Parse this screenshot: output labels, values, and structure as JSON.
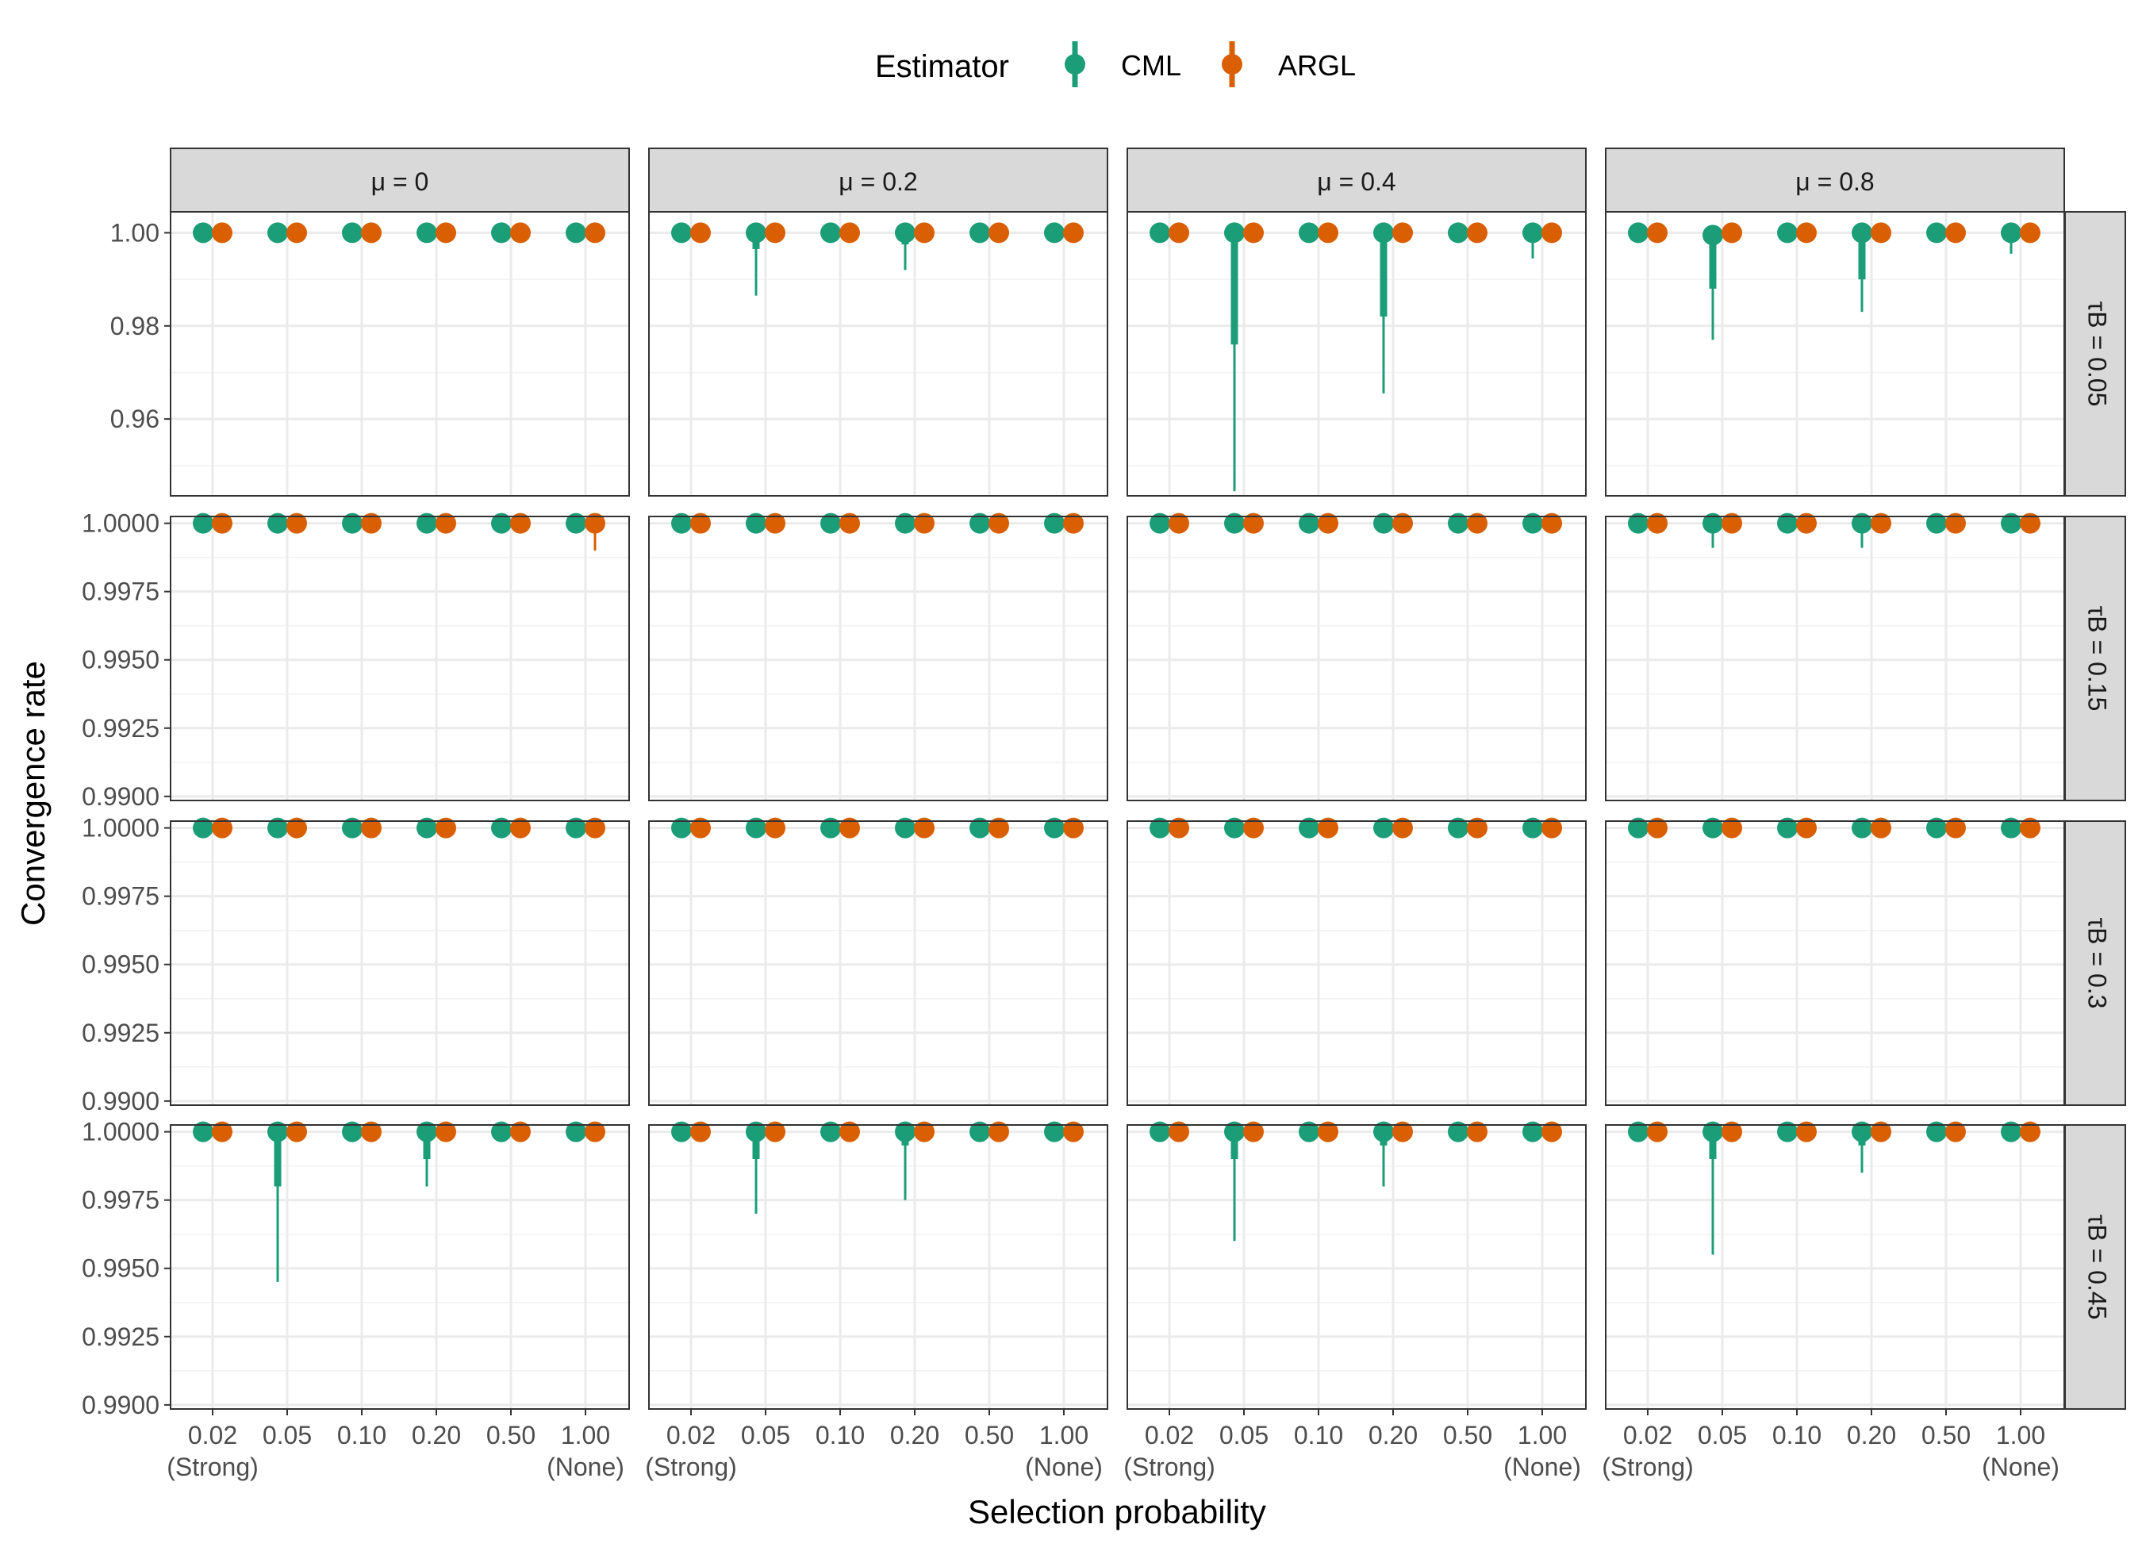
{
  "legend": {
    "title": "Estimator",
    "placement": "top",
    "items": [
      {
        "name": "CML",
        "color": "#1b9e77"
      },
      {
        "name": "ARGL",
        "color": "#d95f02"
      }
    ]
  },
  "chart_data": {
    "type": "scatter",
    "subtype": "faceted point-range",
    "xlabel": "Selection probability",
    "ylabel": "Convergence rate",
    "grid": true,
    "x": [
      "0.02",
      "0.05",
      "0.10",
      "0.20",
      "0.50",
      "1.00"
    ],
    "x_sublabels": [
      "(Strong)",
      "",
      "",
      "",
      "",
      "(None)"
    ],
    "facet_cols": [
      "μ = 0",
      "μ = 0.2",
      "μ = 0.4",
      "μ = 0.8"
    ],
    "facet_rows": [
      "τB = 0.05",
      "τB = 0.15",
      "τB = 0.3",
      "τB = 0.45"
    ],
    "rows": [
      {
        "strip": "τB = 0.05",
        "ylim": [
          0.9435,
          1.0045
        ],
        "yticks": [
          0.96,
          0.98,
          1.0
        ],
        "ytick_labels": [
          "0.96",
          "0.98",
          "1.00"
        ],
        "panels": [
          {
            "CML": {
              "y": [
                1,
                1,
                1,
                1,
                1,
                1
              ],
              "thin_low": [
                1,
                1,
                1,
                1,
                1,
                1
              ],
              "thick_low": [
                1,
                1,
                1,
                1,
                1,
                1
              ]
            },
            "ARGL": {
              "y": [
                1,
                1,
                1,
                1,
                1,
                1
              ],
              "thin_low": [
                1,
                1,
                1,
                1,
                1,
                1
              ],
              "thick_low": [
                1,
                1,
                1,
                1,
                1,
                1
              ]
            }
          },
          {
            "CML": {
              "y": [
                1,
                1,
                1,
                1,
                1,
                1
              ],
              "thin_low": [
                1,
                0.9865,
                1,
                0.992,
                1,
                1
              ],
              "thick_low": [
                1,
                0.9965,
                1,
                0.9975,
                1,
                1
              ]
            },
            "ARGL": {
              "y": [
                1,
                1,
                1,
                1,
                1,
                1
              ],
              "thin_low": [
                1,
                1,
                1,
                1,
                1,
                1
              ],
              "thick_low": [
                1,
                1,
                1,
                1,
                1,
                1
              ]
            }
          },
          {
            "CML": {
              "y": [
                1,
                1,
                1,
                1,
                1,
                1
              ],
              "thin_low": [
                1,
                0.9445,
                1,
                0.9655,
                1,
                0.9945
              ],
              "thick_low": [
                1,
                0.976,
                1,
                0.982,
                1,
                0.9985
              ]
            },
            "ARGL": {
              "y": [
                1,
                1,
                1,
                1,
                1,
                1
              ],
              "thin_low": [
                1,
                1,
                1,
                1,
                1,
                1
              ],
              "thick_low": [
                1,
                1,
                1,
                1,
                1,
                1
              ]
            }
          },
          {
            "CML": {
              "y": [
                1,
                0.9995,
                1,
                1,
                1,
                1
              ],
              "thin_low": [
                1,
                0.977,
                1,
                0.983,
                1,
                0.9955
              ],
              "thick_low": [
                1,
                0.988,
                1,
                0.99,
                1,
                0.9985
              ]
            },
            "ARGL": {
              "y": [
                1,
                1,
                1,
                1,
                1,
                1
              ],
              "thin_low": [
                1,
                1,
                1,
                1,
                1,
                1
              ],
              "thick_low": [
                1,
                1,
                1,
                1,
                1,
                1
              ]
            }
          }
        ]
      },
      {
        "strip": "τB = 0.15",
        "ylim": [
          0.98985,
          1.00025
        ],
        "yticks": [
          0.99,
          0.9925,
          0.995,
          0.9975,
          1.0
        ],
        "ytick_labels": [
          "0.9900",
          "0.9925",
          "0.9950",
          "0.9975",
          "1.0000"
        ],
        "panels": [
          {
            "CML": {
              "y": [
                1,
                1,
                1,
                1,
                1,
                1
              ],
              "thin_low": [
                0.99985,
                0.99985,
                0.99985,
                0.99985,
                0.99985,
                1
              ],
              "thick_low": [
                1,
                1,
                1,
                1,
                1,
                1
              ]
            },
            "ARGL": {
              "y": [
                1,
                1,
                1,
                1,
                1,
                1
              ],
              "thin_low": [
                1,
                1,
                1,
                0.99985,
                0.99985,
                0.999
              ],
              "thick_low": [
                1,
                1,
                1,
                1,
                0.9998,
                0.9997
              ]
            }
          },
          {
            "CML": {
              "y": [
                1,
                1,
                1,
                1,
                1,
                1
              ],
              "thin_low": [
                0.99985,
                0.99985,
                1,
                0.99985,
                1,
                1
              ],
              "thick_low": [
                1,
                1,
                1,
                1,
                1,
                1
              ]
            },
            "ARGL": {
              "y": [
                1,
                1,
                1,
                1,
                1,
                1
              ],
              "thin_low": [
                1,
                1,
                1,
                1,
                1,
                0.99985
              ],
              "thick_low": [
                1,
                1,
                1,
                1,
                1,
                1
              ]
            }
          },
          {
            "CML": {
              "y": [
                1,
                1,
                1,
                1,
                1,
                1
              ],
              "thin_low": [
                0.99985,
                1,
                0.99985,
                0.99985,
                0.99985,
                1
              ],
              "thick_low": [
                1,
                1,
                1,
                1,
                1,
                1
              ]
            },
            "ARGL": {
              "y": [
                1,
                1,
                1,
                1,
                1,
                1
              ],
              "thin_low": [
                1,
                1,
                1,
                1,
                1,
                1
              ],
              "thick_low": [
                1,
                1,
                1,
                1,
                1,
                1
              ]
            }
          },
          {
            "CML": {
              "y": [
                1,
                1,
                1,
                1,
                1,
                1
              ],
              "thin_low": [
                0.99985,
                0.9991,
                0.99985,
                0.9991,
                0.99985,
                1
              ],
              "thick_low": [
                1,
                0.9997,
                1,
                0.9997,
                1,
                1
              ]
            },
            "ARGL": {
              "y": [
                1,
                1,
                1,
                1,
                1,
                1
              ],
              "thin_low": [
                1,
                1,
                1,
                1,
                1,
                1
              ],
              "thick_low": [
                1,
                1,
                1,
                1,
                1,
                1
              ]
            }
          }
        ]
      },
      {
        "strip": "τB = 0.3",
        "ylim": [
          0.98985,
          1.00025
        ],
        "yticks": [
          0.99,
          0.9925,
          0.995,
          0.9975,
          1.0
        ],
        "ytick_labels": [
          "0.9900",
          "0.9925",
          "0.9950",
          "0.9975",
          "1.0000"
        ],
        "panels": [
          {
            "CML": {
              "y": [
                1,
                1,
                1,
                1,
                1,
                1
              ],
              "thin_low": [
                1,
                0.99985,
                0.99985,
                1,
                1,
                1
              ],
              "thick_low": [
                1,
                1,
                1,
                1,
                1,
                1
              ]
            },
            "ARGL": {
              "y": [
                1,
                1,
                1,
                1,
                1,
                1
              ],
              "thin_low": [
                1,
                1,
                1,
                1,
                0.99985,
                1
              ],
              "thick_low": [
                1,
                1,
                1,
                1,
                1,
                1
              ]
            }
          },
          {
            "CML": {
              "y": [
                1,
                1,
                1,
                1,
                1,
                1
              ],
              "thin_low": [
                1,
                1,
                1,
                1,
                1,
                1
              ],
              "thick_low": [
                1,
                1,
                1,
                1,
                1,
                1
              ]
            },
            "ARGL": {
              "y": [
                1,
                1,
                1,
                1,
                1,
                1
              ],
              "thin_low": [
                1,
                1,
                1,
                1,
                1,
                0.99985
              ],
              "thick_low": [
                1,
                1,
                1,
                1,
                1,
                1
              ]
            }
          },
          {
            "CML": {
              "y": [
                1,
                1,
                1,
                1,
                1,
                1
              ],
              "thin_low": [
                0.99985,
                1,
                1,
                1,
                1,
                1
              ],
              "thick_low": [
                1,
                1,
                1,
                1,
                1,
                1
              ]
            },
            "ARGL": {
              "y": [
                1,
                1,
                1,
                1,
                1,
                1
              ],
              "thin_low": [
                1,
                1,
                1,
                1,
                1,
                1
              ],
              "thick_low": [
                1,
                1,
                1,
                1,
                1,
                1
              ]
            }
          },
          {
            "CML": {
              "y": [
                1,
                1,
                1,
                1,
                1,
                1
              ],
              "thin_low": [
                0.99985,
                0.99985,
                1,
                1,
                1,
                1
              ],
              "thick_low": [
                1,
                1,
                1,
                1,
                1,
                1
              ]
            },
            "ARGL": {
              "y": [
                1,
                1,
                1,
                1,
                1,
                1
              ],
              "thin_low": [
                1,
                1,
                1,
                1,
                1,
                1
              ],
              "thick_low": [
                1,
                1,
                1,
                1,
                1,
                1
              ]
            }
          }
        ]
      },
      {
        "strip": "τB = 0.45",
        "ylim": [
          0.98985,
          1.00025
        ],
        "yticks": [
          0.99,
          0.9925,
          0.995,
          0.9975,
          1.0
        ],
        "ytick_labels": [
          "0.9900",
          "0.9925",
          "0.9950",
          "0.9975",
          "1.0000"
        ],
        "panels": [
          {
            "CML": {
              "y": [
                1,
                1,
                1,
                1,
                1,
                1
              ],
              "thin_low": [
                0.99985,
                0.9945,
                0.99985,
                0.998,
                1,
                1
              ],
              "thick_low": [
                1,
                0.998,
                1,
                0.999,
                1,
                1
              ]
            },
            "ARGL": {
              "y": [
                1,
                1,
                1,
                1,
                1,
                1
              ],
              "thin_low": [
                1,
                1,
                1,
                1,
                1,
                1
              ],
              "thick_low": [
                1,
                1,
                1,
                1,
                1,
                1
              ]
            }
          },
          {
            "CML": {
              "y": [
                1,
                1,
                1,
                1,
                1,
                1
              ],
              "thin_low": [
                1,
                0.997,
                1,
                0.9975,
                1,
                1
              ],
              "thick_low": [
                1,
                0.999,
                1,
                0.9995,
                1,
                1
              ]
            },
            "ARGL": {
              "y": [
                1,
                1,
                1,
                1,
                1,
                1
              ],
              "thin_low": [
                1,
                1,
                1,
                1,
                1,
                1
              ],
              "thick_low": [
                1,
                1,
                1,
                1,
                1,
                1
              ]
            }
          },
          {
            "CML": {
              "y": [
                1,
                1,
                1,
                1,
                1,
                1
              ],
              "thin_low": [
                1,
                0.996,
                1,
                0.998,
                1,
                1
              ],
              "thick_low": [
                1,
                0.999,
                1,
                0.9995,
                1,
                1
              ]
            },
            "ARGL": {
              "y": [
                1,
                1,
                1,
                1,
                1,
                1
              ],
              "thin_low": [
                1,
                1,
                1,
                1,
                1,
                1
              ],
              "thick_low": [
                1,
                1,
                1,
                1,
                1,
                1
              ]
            }
          },
          {
            "CML": {
              "y": [
                1,
                1,
                1,
                1,
                1,
                1
              ],
              "thin_low": [
                1,
                0.9955,
                0.99985,
                0.9985,
                1,
                1
              ],
              "thick_low": [
                1,
                0.999,
                1,
                0.9995,
                1,
                1
              ]
            },
            "ARGL": {
              "y": [
                1,
                1,
                1,
                1,
                1,
                1
              ],
              "thin_low": [
                1,
                1,
                1,
                1,
                1,
                1
              ],
              "thick_low": [
                1,
                1,
                1,
                1,
                1,
                1
              ]
            }
          }
        ]
      }
    ]
  }
}
